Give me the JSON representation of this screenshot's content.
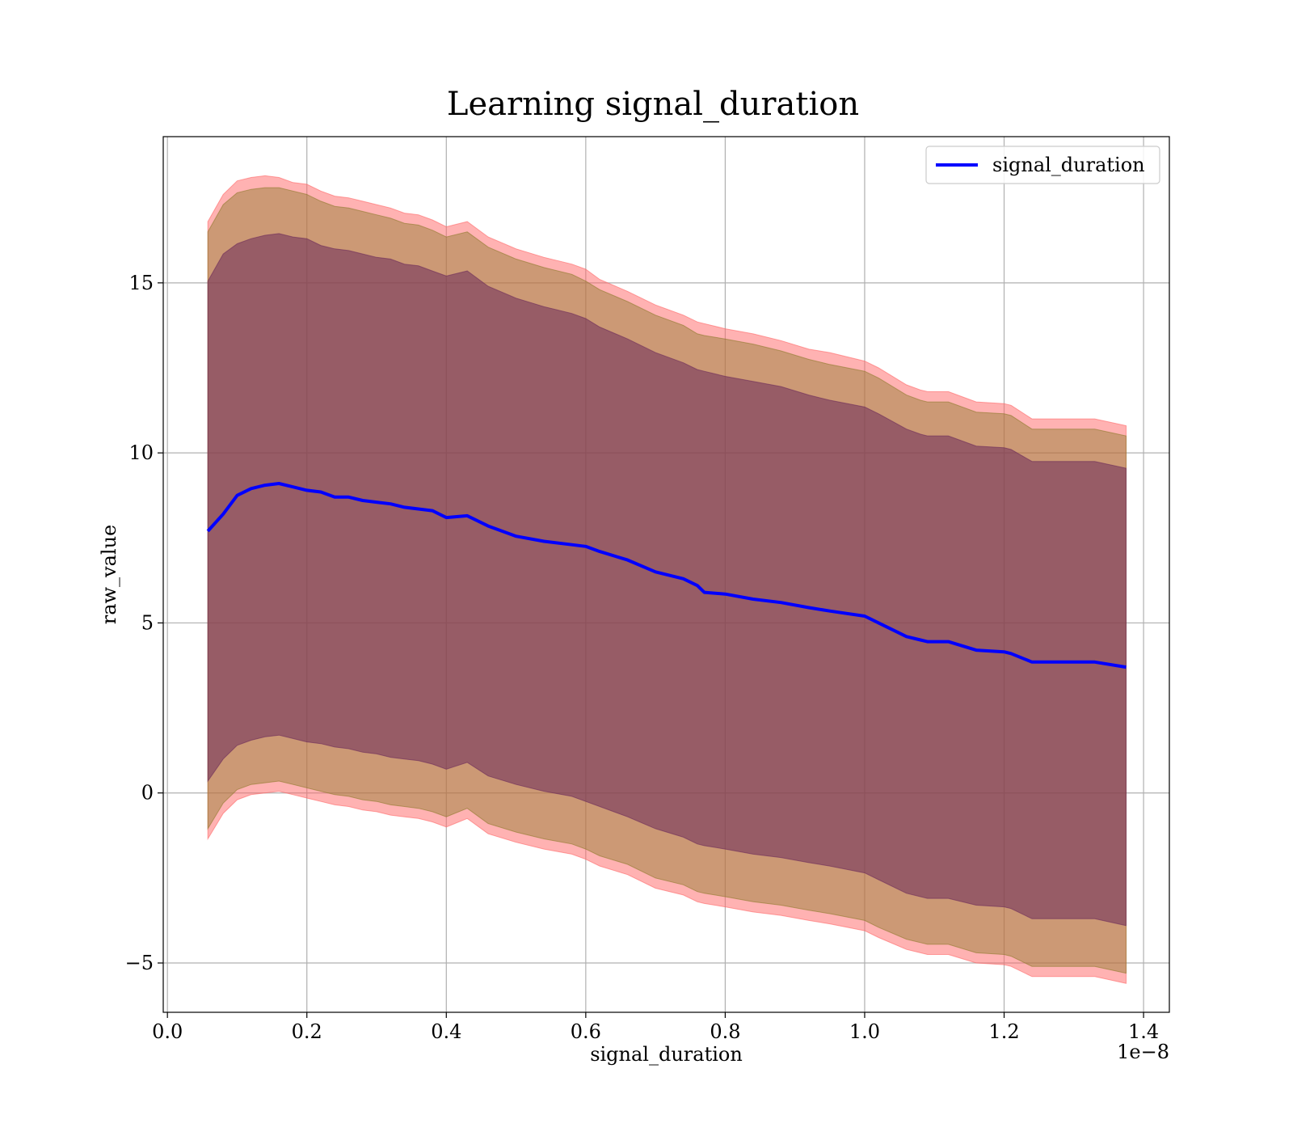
{
  "chart_data": {
    "type": "line",
    "title": "Learning signal_duration",
    "xlabel": "signal_duration",
    "ylabel": "raw_value",
    "x_offset_text": "1e−8",
    "xlim": [
      -0.006,
      1.437
    ],
    "ylim": [
      -6.45,
      19.3
    ],
    "x_ticks": [
      0.0,
      0.2,
      0.4,
      0.6,
      0.8,
      1.0,
      1.2,
      1.4
    ],
    "x_tick_labels": [
      "0.0",
      "0.2",
      "0.4",
      "0.6",
      "0.8",
      "1.0",
      "1.2",
      "1.4"
    ],
    "y_ticks": [
      -5,
      0,
      5,
      10,
      15
    ],
    "y_tick_labels": [
      "−5",
      "0",
      "5",
      "10",
      "15"
    ],
    "grid": true,
    "legend": {
      "position": "top-right",
      "entries": [
        "signal_duration"
      ]
    },
    "x": [
      0.058,
      0.08,
      0.1,
      0.12,
      0.14,
      0.16,
      0.18,
      0.2,
      0.22,
      0.24,
      0.26,
      0.28,
      0.3,
      0.32,
      0.34,
      0.36,
      0.38,
      0.4,
      0.43,
      0.46,
      0.5,
      0.54,
      0.58,
      0.6,
      0.62,
      0.66,
      0.7,
      0.74,
      0.76,
      0.77,
      0.8,
      0.84,
      0.88,
      0.92,
      0.95,
      1.0,
      1.02,
      1.06,
      1.08,
      1.09,
      1.12,
      1.16,
      1.2,
      1.21,
      1.24,
      1.28,
      1.33,
      1.375
    ],
    "series": [
      {
        "name": "signal_duration",
        "color": "#0000ff",
        "mean": [
          7.7,
          8.2,
          8.75,
          8.95,
          9.05,
          9.1,
          9.0,
          8.9,
          8.85,
          8.7,
          8.7,
          8.6,
          8.55,
          8.5,
          8.4,
          8.35,
          8.3,
          8.1,
          8.15,
          7.85,
          7.55,
          7.4,
          7.3,
          7.25,
          7.1,
          6.85,
          6.5,
          6.3,
          6.1,
          5.9,
          5.85,
          5.7,
          5.6,
          5.45,
          5.35,
          5.2,
          5.0,
          4.6,
          4.5,
          4.45,
          4.45,
          4.2,
          4.15,
          4.1,
          3.85,
          3.85,
          3.85,
          3.7
        ]
      }
    ],
    "bands": [
      {
        "level": "3 std",
        "fill": "#ff6666",
        "opacity": 0.5,
        "upper": [
          16.8,
          17.6,
          18.0,
          18.1,
          18.15,
          18.1,
          17.95,
          17.9,
          17.7,
          17.55,
          17.5,
          17.4,
          17.3,
          17.2,
          17.05,
          17.0,
          16.85,
          16.65,
          16.8,
          16.35,
          16.0,
          15.75,
          15.55,
          15.4,
          15.1,
          14.75,
          14.35,
          14.05,
          13.85,
          13.8,
          13.65,
          13.5,
          13.3,
          13.05,
          12.95,
          12.7,
          12.5,
          12.0,
          11.85,
          11.8,
          11.8,
          11.5,
          11.45,
          11.4,
          11.0,
          11.0,
          11.0,
          10.8
        ],
        "lower": [
          -1.35,
          -0.6,
          -0.2,
          -0.05,
          0.0,
          0.05,
          -0.05,
          -0.15,
          -0.25,
          -0.35,
          -0.4,
          -0.5,
          -0.55,
          -0.65,
          -0.7,
          -0.75,
          -0.85,
          -1.0,
          -0.75,
          -1.2,
          -1.45,
          -1.65,
          -1.8,
          -1.95,
          -2.15,
          -2.4,
          -2.8,
          -3.0,
          -3.2,
          -3.25,
          -3.35,
          -3.5,
          -3.6,
          -3.75,
          -3.85,
          -4.05,
          -4.25,
          -4.6,
          -4.7,
          -4.75,
          -4.75,
          -5.0,
          -5.05,
          -5.1,
          -5.4,
          -5.4,
          -5.4,
          -5.6
        ]
      },
      {
        "level": "2 std",
        "fill": "#8e7a2b",
        "opacity": 0.45,
        "upper": [
          16.5,
          17.3,
          17.65,
          17.75,
          17.8,
          17.8,
          17.7,
          17.6,
          17.4,
          17.25,
          17.2,
          17.1,
          17.0,
          16.9,
          16.75,
          16.7,
          16.55,
          16.35,
          16.5,
          16.05,
          15.7,
          15.45,
          15.25,
          15.05,
          14.8,
          14.45,
          14.05,
          13.75,
          13.5,
          13.45,
          13.35,
          13.2,
          13.0,
          12.75,
          12.6,
          12.4,
          12.2,
          11.7,
          11.55,
          11.5,
          11.5,
          11.2,
          11.15,
          11.1,
          10.7,
          10.7,
          10.7,
          10.5
        ],
        "lower": [
          -1.05,
          -0.3,
          0.1,
          0.25,
          0.3,
          0.35,
          0.25,
          0.15,
          0.05,
          -0.05,
          -0.1,
          -0.2,
          -0.25,
          -0.35,
          -0.4,
          -0.45,
          -0.55,
          -0.7,
          -0.45,
          -0.9,
          -1.15,
          -1.35,
          -1.5,
          -1.65,
          -1.85,
          -2.1,
          -2.5,
          -2.7,
          -2.9,
          -2.95,
          -3.05,
          -3.2,
          -3.3,
          -3.45,
          -3.55,
          -3.75,
          -3.95,
          -4.3,
          -4.4,
          -4.45,
          -4.45,
          -4.7,
          -4.75,
          -4.8,
          -5.1,
          -5.1,
          -5.1,
          -5.3
        ]
      },
      {
        "level": "1 std",
        "fill": "#6b2a5a",
        "opacity": 0.55,
        "upper": [
          15.05,
          15.85,
          16.15,
          16.3,
          16.4,
          16.45,
          16.35,
          16.3,
          16.1,
          16.0,
          15.95,
          15.85,
          15.75,
          15.7,
          15.55,
          15.5,
          15.35,
          15.2,
          15.35,
          14.9,
          14.55,
          14.3,
          14.1,
          13.95,
          13.7,
          13.35,
          12.95,
          12.65,
          12.45,
          12.4,
          12.25,
          12.1,
          11.95,
          11.7,
          11.55,
          11.35,
          11.15,
          10.7,
          10.55,
          10.5,
          10.5,
          10.2,
          10.15,
          10.1,
          9.75,
          9.75,
          9.75,
          9.55
        ],
        "lower": [
          0.35,
          1.0,
          1.4,
          1.55,
          1.65,
          1.7,
          1.6,
          1.5,
          1.45,
          1.35,
          1.3,
          1.2,
          1.15,
          1.05,
          1.0,
          0.95,
          0.85,
          0.7,
          0.9,
          0.5,
          0.25,
          0.05,
          -0.1,
          -0.25,
          -0.4,
          -0.7,
          -1.05,
          -1.3,
          -1.5,
          -1.55,
          -1.65,
          -1.8,
          -1.9,
          -2.05,
          -2.15,
          -2.35,
          -2.55,
          -2.95,
          -3.05,
          -3.1,
          -3.1,
          -3.3,
          -3.35,
          -3.4,
          -3.7,
          -3.7,
          -3.7,
          -3.9
        ]
      }
    ]
  }
}
